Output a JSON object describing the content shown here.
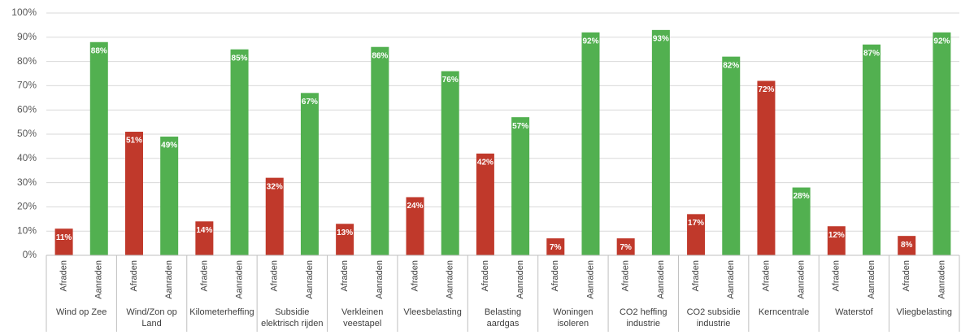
{
  "chart_data": {
    "type": "bar",
    "categories": [
      "Wind op Zee",
      "Wind/Zon op Land",
      "Kilometerheffing",
      "Subsidie elektrisch rijden",
      "Verkleinen veestapel",
      "Vleesbelasting",
      "Belasting aardgas",
      "Woningen isoleren",
      "CO2 heffing industrie",
      "CO2 subsidie industrie",
      "Kerncentrale",
      "Waterstof",
      "Vliegbelasting"
    ],
    "series": [
      {
        "name": "Afraden",
        "color": "#c0392b",
        "values": [
          11,
          51,
          14,
          32,
          13,
          24,
          42,
          7,
          7,
          17,
          72,
          12,
          8
        ],
        "value_labels": [
          "11%",
          "51%",
          "14%",
          "32%",
          "13%",
          "24%",
          "42%",
          "7%",
          "7%",
          "17%",
          "72%",
          "12%",
          "8%"
        ]
      },
      {
        "name": "Aanraden",
        "color": "#52b050",
        "values": [
          88,
          49,
          85,
          67,
          86,
          76,
          57,
          92,
          93,
          82,
          28,
          87,
          92
        ],
        "value_labels": [
          "88%",
          "49%",
          "85%",
          "67%",
          "86%",
          "76%",
          "57%",
          "92%",
          "93%",
          "82%",
          "28%",
          "87%",
          "92%"
        ]
      }
    ],
    "ylim": [
      0,
      100
    ],
    "yticks": [
      {
        "value": 0,
        "label": "0%"
      },
      {
        "value": 10,
        "label": "10%"
      },
      {
        "value": 20,
        "label": "20%"
      },
      {
        "value": 30,
        "label": "30%"
      },
      {
        "value": 40,
        "label": "40%"
      },
      {
        "value": 50,
        "label": "50%"
      },
      {
        "value": 60,
        "label": "60%"
      },
      {
        "value": 70,
        "label": "70%"
      },
      {
        "value": 80,
        "label": "80%"
      },
      {
        "value": 90,
        "label": "90%"
      },
      {
        "value": 100,
        "label": "100%"
      }
    ],
    "grid": true
  }
}
